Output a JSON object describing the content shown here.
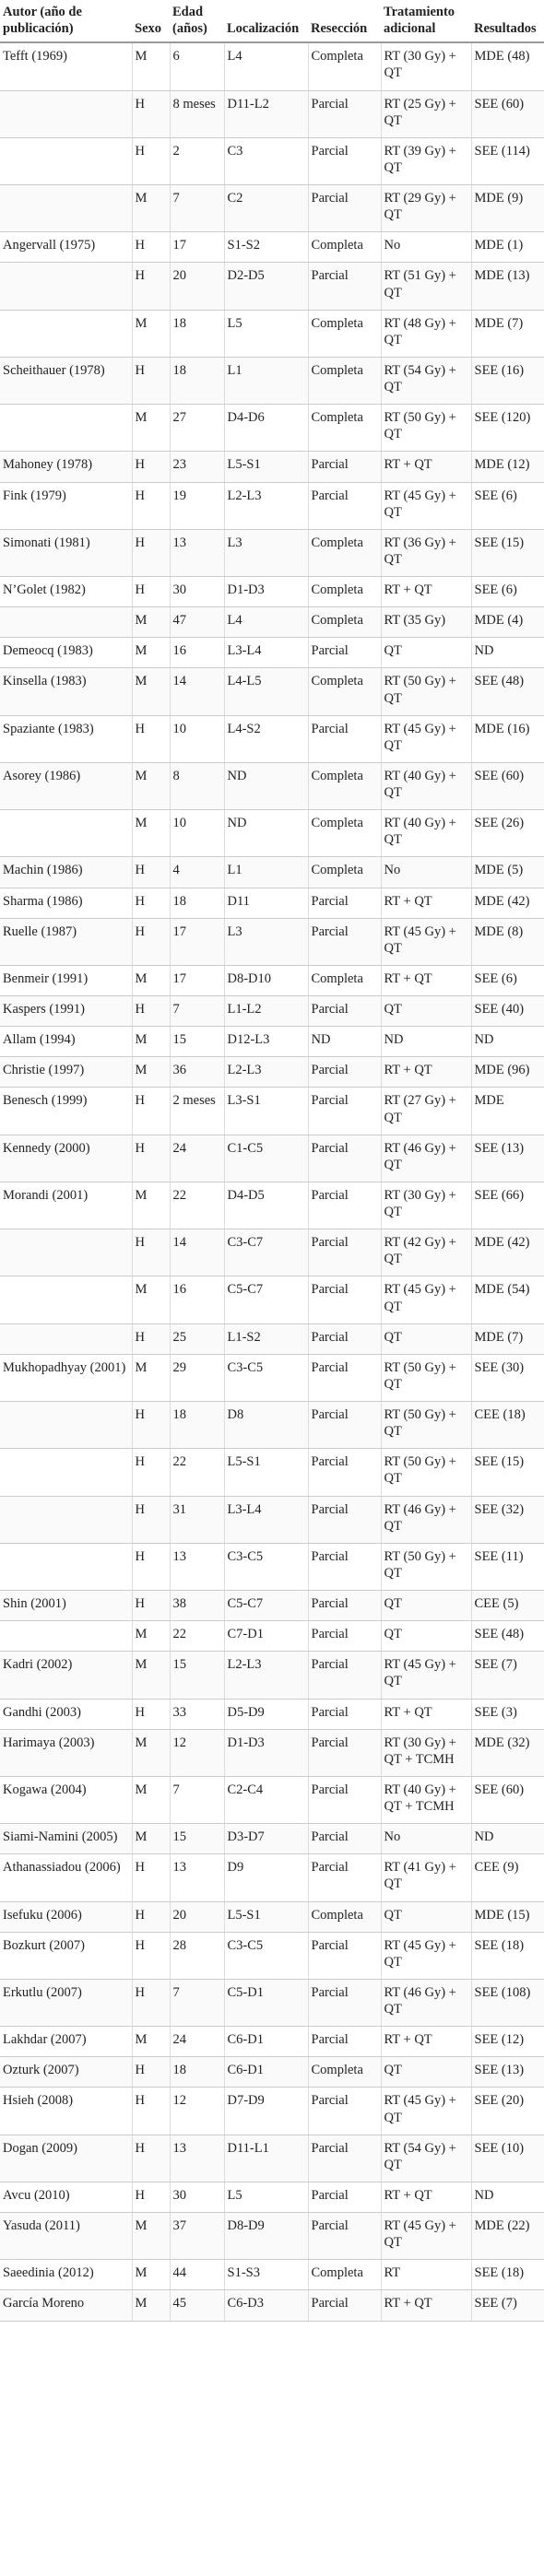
{
  "table": {
    "header": [
      "Autor (año de publicación)",
      "Sexo",
      "Edad (años)",
      "Localización",
      "Resección",
      "Tratamiento adicional",
      "Resultados"
    ],
    "rows": [
      [
        "Tefft (1969)",
        "M",
        "6",
        "L4",
        "Completa",
        "RT (30 Gy) + QT",
        "MDE (48)"
      ],
      [
        null,
        "H",
        "8 meses",
        "D11-L2",
        "Parcial",
        "RT (25 Gy) + QT",
        "SEE (60)"
      ],
      [
        null,
        "H",
        "2",
        "C3",
        "Parcial",
        "RT (39 Gy) + QT",
        "SEE (114)"
      ],
      [
        null,
        "M",
        "7",
        "C2",
        "Parcial",
        "RT (29 Gy) + QT",
        "MDE (9)"
      ],
      [
        "Angervall (1975)",
        "H",
        "17",
        "S1-S2",
        "Completa",
        "No",
        "MDE (1)"
      ],
      [
        null,
        "H",
        "20",
        "D2-D5",
        "Parcial",
        "RT (51 Gy) + QT",
        "MDE (13)"
      ],
      [
        null,
        "M",
        "18",
        "L5",
        "Completa",
        "RT (48 Gy) + QT",
        "MDE (7)"
      ],
      [
        "Scheithauer (1978)",
        "H",
        "18",
        "L1",
        "Completa",
        "RT (54 Gy) + QT",
        "SEE (16)"
      ],
      [
        null,
        "M",
        "27",
        "D4-D6",
        "Completa",
        "RT (50 Gy) + QT",
        "SEE (120)"
      ],
      [
        "Mahoney (1978)",
        "H",
        "23",
        "L5-S1",
        "Parcial",
        "RT + QT",
        "MDE (12)"
      ],
      [
        "Fink (1979)",
        "H",
        "19",
        "L2-L3",
        "Parcial",
        "RT (45 Gy) + QT",
        "SEE (6)"
      ],
      [
        "Simonati (1981)",
        "H",
        "13",
        "L3",
        "Completa",
        "RT (36 Gy) + QT",
        "SEE (15)"
      ],
      [
        "N’Golet (1982)",
        "H",
        "30",
        "D1-D3",
        "Completa",
        "RT + QT",
        "SEE (6)"
      ],
      [
        null,
        "M",
        "47",
        "L4",
        "Completa",
        "RT (35 Gy)",
        "MDE (4)"
      ],
      [
        "Demeocq (1983)",
        "M",
        "16",
        "L3-L4",
        "Parcial",
        "QT",
        "ND"
      ],
      [
        "Kinsella (1983)",
        "M",
        "14",
        "L4-L5",
        "Completa",
        "RT (50 Gy) + QT",
        "SEE (48)"
      ],
      [
        "Spaziante (1983)",
        "H",
        "10",
        "L4-S2",
        "Parcial",
        "RT (45 Gy) + QT",
        "MDE (16)"
      ],
      [
        "Asorey (1986)",
        "M",
        "8",
        "ND",
        "Completa",
        "RT (40 Gy) + QT",
        "SEE (60)"
      ],
      [
        null,
        "M",
        "10",
        "ND",
        "Completa",
        "RT (40 Gy) + QT",
        "SEE (26)"
      ],
      [
        "Machin (1986)",
        "H",
        "4",
        "L1",
        "Completa",
        "No",
        "MDE (5)"
      ],
      [
        "Sharma (1986)",
        "H",
        "18",
        "D11",
        "Parcial",
        "RT + QT",
        "MDE (42)"
      ],
      [
        "Ruelle (1987)",
        "H",
        "17",
        "L3",
        "Parcial",
        "RT (45 Gy) + QT",
        "MDE (8)"
      ],
      [
        "Benmeir (1991)",
        "M",
        "17",
        "D8-D10",
        "Completa",
        "RT + QT",
        "SEE (6)"
      ],
      [
        "Kaspers (1991)",
        "H",
        "7",
        "L1-L2",
        "Parcial",
        "QT",
        "SEE (40)"
      ],
      [
        "Allam (1994)",
        "M",
        "15",
        "D12-L3",
        "ND",
        "ND",
        "ND"
      ],
      [
        "Christie (1997)",
        "M",
        "36",
        "L2-L3",
        "Parcial",
        "RT + QT",
        "MDE (96)"
      ],
      [
        "Benesch (1999)",
        "H",
        "2 meses",
        "L3-S1",
        "Parcial",
        "RT (27 Gy) + QT",
        "MDE"
      ],
      [
        "Kennedy (2000)",
        "H",
        "24",
        "C1-C5",
        "Parcial",
        "RT (46 Gy) + QT",
        "SEE (13)"
      ],
      [
        "Morandi (2001)",
        "M",
        "22",
        "D4-D5",
        "Parcial",
        "RT (30 Gy) + QT",
        "SEE (66)"
      ],
      [
        null,
        "H",
        "14",
        "C3-C7",
        "Parcial",
        "RT (42 Gy) + QT",
        "MDE (42)"
      ],
      [
        null,
        "M",
        "16",
        "C5-C7",
        "Parcial",
        "RT (45 Gy) + QT",
        "MDE (54)"
      ],
      [
        null,
        "H",
        "25",
        "L1-S2",
        "Parcial",
        "QT",
        "MDE (7)"
      ],
      [
        "Mukhopadhyay (2001)",
        "M",
        "29",
        "C3-C5",
        "Parcial",
        "RT (50 Gy) + QT",
        "SEE (30)"
      ],
      [
        null,
        "H",
        "18",
        "D8",
        "Parcial",
        "RT (50 Gy) + QT",
        "CEE (18)"
      ],
      [
        null,
        "H",
        "22",
        "L5-S1",
        "Parcial",
        "RT (50 Gy) + QT",
        "SEE (15)"
      ],
      [
        null,
        "H",
        "31",
        "L3-L4",
        "Parcial",
        "RT (46 Gy) + QT",
        "SEE (32)"
      ],
      [
        null,
        "H",
        "13",
        "C3-C5",
        "Parcial",
        "RT (50 Gy) + QT",
        "SEE (11)"
      ],
      [
        "Shin (2001)",
        "H",
        "38",
        "C5-C7",
        "Parcial",
        "QT",
        "CEE (5)"
      ],
      [
        null,
        "M",
        "22",
        "C7-D1",
        "Parcial",
        "QT",
        "SEE (48)"
      ],
      [
        "Kadri (2002)",
        "M",
        "15",
        "L2-L3",
        "Parcial",
        "RT (45 Gy) + QT",
        "SEE (7)"
      ],
      [
        "Gandhi (2003)",
        "H",
        "33",
        "D5-D9",
        "Parcial",
        "RT + QT",
        "SEE (3)"
      ],
      [
        "Harimaya (2003)",
        "M",
        "12",
        "D1-D3",
        "Parcial",
        "RT (30 Gy) + QT + TCMH",
        "MDE (32)"
      ],
      [
        "Kogawa (2004)",
        "M",
        "7",
        "C2-C4",
        "Parcial",
        "RT (40 Gy) + QT + TCMH",
        "SEE (60)"
      ],
      [
        "Siami-Namini (2005)",
        "M",
        "15",
        "D3-D7",
        "Parcial",
        "No",
        "ND"
      ],
      [
        "Athanassiadou (2006)",
        "H",
        "13",
        "D9",
        "Parcial",
        "RT (41 Gy) + QT",
        "CEE (9)"
      ],
      [
        "Isefuku (2006)",
        "H",
        "20",
        "L5-S1",
        "Completa",
        "QT",
        "MDE (15)"
      ],
      [
        "Bozkurt (2007)",
        "H",
        "28",
        "C3-C5",
        "Parcial",
        "RT (45 Gy) + QT",
        "SEE (18)"
      ],
      [
        "Erkutlu (2007)",
        "H",
        "7",
        "C5-D1",
        "Parcial",
        "RT (46 Gy) + QT",
        "SEE (108)"
      ],
      [
        "Lakhdar (2007)",
        "M",
        "24",
        "C6-D1",
        "Parcial",
        "RT + QT",
        "SEE (12)"
      ],
      [
        "Ozturk (2007)",
        "H",
        "18",
        "C6-D1",
        "Completa",
        "QT",
        "SEE (13)"
      ],
      [
        "Hsieh (2008)",
        "H",
        "12",
        "D7-D9",
        "Parcial",
        "RT (45 Gy) + QT",
        "SEE (20)"
      ],
      [
        "Dogan (2009)",
        "H",
        "13",
        "D11-L1",
        "Parcial",
        "RT (54 Gy) + QT",
        "SEE (10)"
      ],
      [
        "Avcu (2010)",
        "H",
        "30",
        "L5",
        "Parcial",
        "RT + QT",
        "ND"
      ],
      [
        "Yasuda (2011)",
        "M",
        "37",
        "D8-D9",
        "Parcial",
        "RT (45 Gy) + QT",
        "MDE (22)"
      ],
      [
        "Saeedinia (2012)",
        "M",
        "44",
        "S1-S3",
        "Completa",
        "RT",
        "SEE (18)"
      ],
      [
        "García Moreno",
        "M",
        "45",
        "C6-D3",
        "Parcial",
        "RT + QT",
        "SEE (7)"
      ]
    ]
  }
}
